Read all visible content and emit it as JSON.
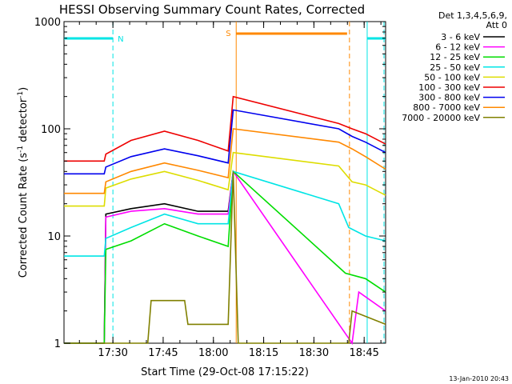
{
  "chart_data": {
    "type": "line",
    "title": "HESSI Observing Summary Count Rates, Corrected",
    "xlabel": "Start Time (29-Oct-08 17:15:22)",
    "ylabel_main": "Corrected Count Rate (s",
    "ylabel_sup1": "-1",
    "ylabel_mid": " detector",
    "ylabel_sup2": "-1",
    "ylabel_end": ")",
    "yscale": "log",
    "ylim": [
      1,
      1000
    ],
    "xlim_minutes": [
      0,
      96
    ],
    "x_ticks": [
      {
        "label": "17:30",
        "t": 14.6
      },
      {
        "label": "17:45",
        "t": 29.6
      },
      {
        "label": "18:00",
        "t": 44.6
      },
      {
        "label": "18:15",
        "t": 59.6
      },
      {
        "label": "18:30",
        "t": 74.6
      },
      {
        "label": "18:45",
        "t": 89.6
      }
    ],
    "y_ticks": [
      {
        "label": "1",
        "v": 1
      },
      {
        "label": "10",
        "v": 10
      },
      {
        "label": "100",
        "v": 100
      },
      {
        "label": "1000",
        "v": 1000
      }
    ],
    "legend_header": [
      "Det 1,3,4,5,6,9,",
      "Att 0"
    ],
    "legend_placement": "right",
    "series": [
      {
        "name": "3 - 6 keV",
        "color": "#000000",
        "points": [
          [
            0,
            1
          ],
          [
            12,
            1
          ],
          [
            12.5,
            16
          ],
          [
            20,
            18
          ],
          [
            30,
            20
          ],
          [
            40,
            17
          ],
          [
            49,
            17
          ],
          [
            50.5,
            40
          ]
        ]
      },
      {
        "name": "6 - 12 keV",
        "color": "#ff00ff",
        "points": [
          [
            0,
            1
          ],
          [
            12,
            1
          ],
          [
            12.5,
            15
          ],
          [
            20,
            17
          ],
          [
            30,
            18
          ],
          [
            40,
            16
          ],
          [
            49,
            16
          ],
          [
            50.5,
            40
          ],
          [
            86,
            1
          ],
          [
            88,
            3
          ],
          [
            96,
            2
          ]
        ]
      },
      {
        "name": "12 - 25 keV",
        "color": "#00dd00",
        "points": [
          [
            0,
            1
          ],
          [
            12,
            1
          ],
          [
            12.5,
            7.5
          ],
          [
            20,
            9
          ],
          [
            30,
            13
          ],
          [
            40,
            10
          ],
          [
            49,
            8
          ],
          [
            50.5,
            40
          ],
          [
            84,
            4.5
          ],
          [
            90,
            4
          ],
          [
            96,
            3
          ]
        ]
      },
      {
        "name": "25 - 50 keV",
        "color": "#00e5e5",
        "points": [
          [
            0,
            6.5
          ],
          [
            12,
            6.5
          ],
          [
            12.5,
            9.5
          ],
          [
            20,
            12
          ],
          [
            30,
            16
          ],
          [
            40,
            13
          ],
          [
            49,
            13
          ],
          [
            50.5,
            40
          ],
          [
            82,
            20
          ],
          [
            85,
            12
          ],
          [
            90,
            10
          ],
          [
            96,
            9
          ]
        ]
      },
      {
        "name": "50 - 100 keV",
        "color": "#dddd00",
        "points": [
          [
            0,
            19
          ],
          [
            12,
            19
          ],
          [
            12.5,
            28
          ],
          [
            20,
            34
          ],
          [
            30,
            40
          ],
          [
            40,
            33
          ],
          [
            49,
            27
          ],
          [
            50.5,
            60
          ],
          [
            82,
            45
          ],
          [
            86,
            32
          ],
          [
            90,
            30
          ],
          [
            96,
            24
          ]
        ]
      },
      {
        "name": "100 - 300 keV",
        "color": "#ee0000",
        "points": [
          [
            0,
            50
          ],
          [
            12,
            50
          ],
          [
            12.5,
            58
          ],
          [
            20,
            78
          ],
          [
            30,
            95
          ],
          [
            40,
            78
          ],
          [
            49,
            62
          ],
          [
            50.5,
            200
          ],
          [
            82,
            112
          ],
          [
            86,
            100
          ],
          [
            90,
            90
          ],
          [
            96,
            72
          ]
        ]
      },
      {
        "name": "300 - 800 keV",
        "color": "#0000ee",
        "points": [
          [
            0,
            38
          ],
          [
            12,
            38
          ],
          [
            12.5,
            44
          ],
          [
            20,
            55
          ],
          [
            30,
            65
          ],
          [
            40,
            56
          ],
          [
            49,
            48
          ],
          [
            50.5,
            150
          ],
          [
            82,
            100
          ],
          [
            86,
            85
          ],
          [
            90,
            75
          ],
          [
            96,
            60
          ]
        ]
      },
      {
        "name": "800 - 7000 keV",
        "color": "#ff8800",
        "points": [
          [
            0,
            25
          ],
          [
            12,
            25
          ],
          [
            12.5,
            32
          ],
          [
            20,
            40
          ],
          [
            30,
            48
          ],
          [
            40,
            41
          ],
          [
            49,
            35
          ],
          [
            50.5,
            100
          ],
          [
            82,
            75
          ],
          [
            86,
            65
          ],
          [
            90,
            55
          ],
          [
            96,
            42
          ]
        ]
      },
      {
        "name": "7000 - 20000 keV",
        "color": "#808000",
        "points": [
          [
            0,
            1
          ],
          [
            25,
            1
          ],
          [
            26,
            2.5
          ],
          [
            36,
            2.5
          ],
          [
            37,
            1.5
          ],
          [
            49,
            1.5
          ],
          [
            50.5,
            40
          ],
          [
            52,
            1
          ],
          [
            85,
            1
          ],
          [
            86,
            2
          ],
          [
            96,
            1.5
          ]
        ]
      }
    ],
    "annotations": {
      "night_label": "N",
      "saa_label": "S",
      "night_bars": [
        [
          0,
          14.6
        ],
        [
          90.5,
          96
        ]
      ],
      "saa_bar": [
        51.4,
        84.5
      ],
      "night_color": "#00e5e5",
      "saa_color": "#ff8800"
    },
    "footer": "13-Jan-2010 20:43"
  }
}
